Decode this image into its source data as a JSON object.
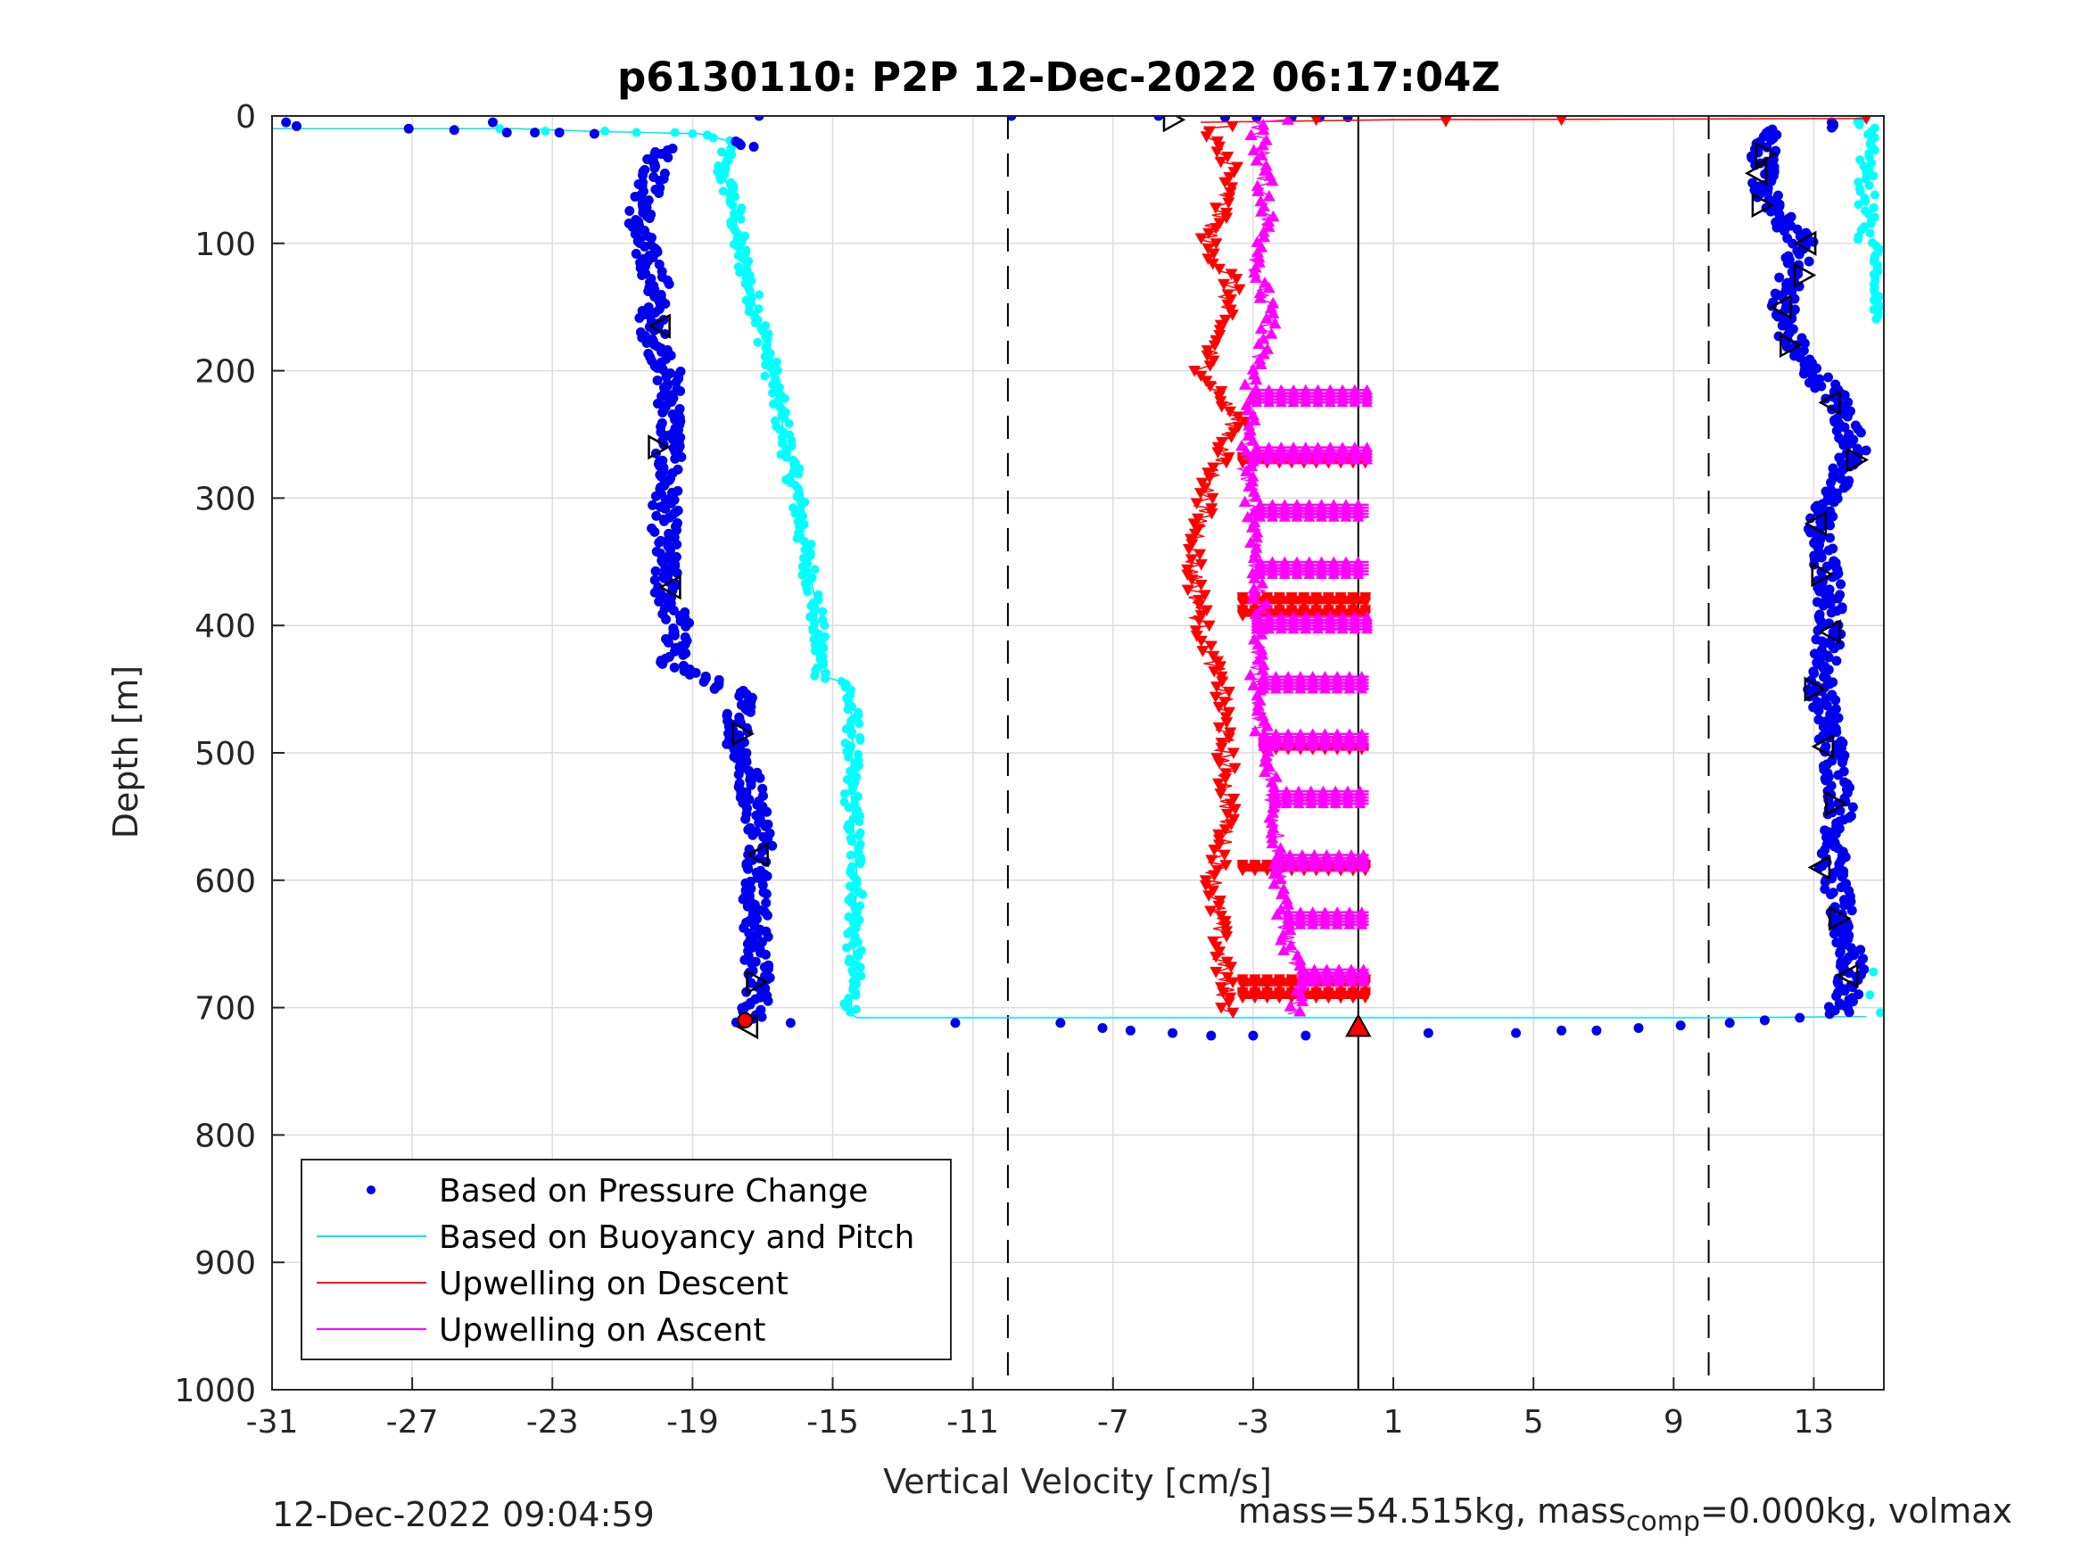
{
  "chart_data": {
    "type": "scatter",
    "title": "p6130110: P2P 12-Dec-2022 06:17:04Z",
    "xlabel": "Vertical Velocity [cm/s]",
    "ylabel": "Depth [m]",
    "xlim": [
      -31,
      15
    ],
    "ylim": [
      0,
      1000
    ],
    "y_reversed": true,
    "grid": true,
    "x_ticks": [
      "-31",
      "-27",
      "-23",
      "-19",
      "-15",
      "-11",
      "-7",
      "-3",
      "1",
      "5",
      "9",
      "13"
    ],
    "y_ticks": [
      "0",
      "100",
      "200",
      "300",
      "400",
      "500",
      "600",
      "700",
      "800",
      "900",
      "1000"
    ],
    "dashed_vlines": [
      -10,
      10
    ],
    "solid_vline": 0,
    "legend_position": "bottom-left",
    "series": [
      {
        "name": "Based on Pressure Change",
        "color": "#0000ee",
        "marker": "dot",
        "descent_profile": [
          [
            -19.8,
            25
          ],
          [
            -20.3,
            60
          ],
          [
            -20.6,
            90
          ],
          [
            -20.0,
            130
          ],
          [
            -20.2,
            165
          ],
          [
            -19.7,
            200
          ],
          [
            -19.6,
            240
          ],
          [
            -19.7,
            270
          ],
          [
            -19.8,
            320
          ],
          [
            -19.8,
            370
          ],
          [
            -19.4,
            400
          ],
          [
            -19.6,
            430
          ],
          [
            -17.6,
            455
          ],
          [
            -17.7,
            490
          ],
          [
            -17.3,
            530
          ],
          [
            -17.0,
            570
          ],
          [
            -17.2,
            610
          ],
          [
            -17.2,
            650
          ],
          [
            -17.1,
            690
          ],
          [
            -17.4,
            712
          ]
        ],
        "descent_surface": [
          [
            -30.6,
            5
          ],
          [
            -30.3,
            8
          ],
          [
            -27.1,
            10
          ],
          [
            -25.8,
            11
          ],
          [
            -24.7,
            5
          ],
          [
            -24.3,
            13
          ],
          [
            -23.5,
            13
          ],
          [
            -22.8,
            13
          ],
          [
            -21.8,
            14
          ],
          [
            -17.1,
            0
          ]
        ],
        "ascent_profile": [
          [
            11.8,
            10
          ],
          [
            11.5,
            40
          ],
          [
            11.7,
            70
          ],
          [
            12.7,
            100
          ],
          [
            12.3,
            130
          ],
          [
            12.1,
            160
          ],
          [
            12.6,
            190
          ],
          [
            13.6,
            220
          ],
          [
            14.2,
            260
          ],
          [
            13.4,
            300
          ],
          [
            13.1,
            330
          ],
          [
            13.4,
            360
          ],
          [
            13.5,
            400
          ],
          [
            13.2,
            450
          ],
          [
            13.5,
            490
          ],
          [
            13.8,
            540
          ],
          [
            13.5,
            590
          ],
          [
            13.8,
            630
          ],
          [
            14.1,
            670
          ],
          [
            13.8,
            700
          ]
        ],
        "bottom_crossing": [
          [
            -16.2,
            712
          ],
          [
            -11.5,
            712
          ],
          [
            -8.5,
            712
          ],
          [
            -7.3,
            716
          ],
          [
            -6.5,
            718
          ],
          [
            -5.3,
            720
          ],
          [
            -4.2,
            722
          ],
          [
            -3.0,
            722
          ],
          [
            -1.5,
            722
          ],
          [
            2.0,
            720
          ],
          [
            4.5,
            720
          ],
          [
            5.8,
            718
          ],
          [
            6.8,
            718
          ],
          [
            8.0,
            716
          ],
          [
            9.2,
            714
          ],
          [
            10.6,
            712
          ],
          [
            11.6,
            710
          ],
          [
            12.6,
            708
          ]
        ],
        "top_points": [
          [
            -9.9,
            0
          ],
          [
            -5.7,
            0
          ],
          [
            -3.8,
            1
          ],
          [
            -2.9,
            1
          ],
          [
            -1.9,
            1
          ],
          [
            -1.1,
            1
          ],
          [
            -0.3,
            1
          ]
        ]
      },
      {
        "name": "Based on Buoyancy and Pitch",
        "color": "#00ffff",
        "marker": "line+dot",
        "line": [
          [
            -31,
            10
          ],
          [
            -24,
            10
          ],
          [
            -22,
            12
          ],
          [
            -18.8,
            14
          ],
          [
            -17.9,
            20
          ],
          [
            -18.2,
            40
          ],
          [
            -17.8,
            70
          ],
          [
            -17.7,
            100
          ],
          [
            -17.3,
            140
          ],
          [
            -16.9,
            180
          ],
          [
            -16.6,
            220
          ],
          [
            -16.3,
            260
          ],
          [
            -16.0,
            300
          ],
          [
            -15.8,
            340
          ],
          [
            -15.5,
            380
          ],
          [
            -15.4,
            420
          ],
          [
            -15.3,
            440
          ],
          [
            -14.6,
            445
          ],
          [
            -14.4,
            480
          ],
          [
            -14.5,
            520
          ],
          [
            -14.4,
            560
          ],
          [
            -14.3,
            600
          ],
          [
            -14.4,
            640
          ],
          [
            -14.4,
            680
          ],
          [
            -14.5,
            705
          ],
          [
            -14.3,
            708
          ],
          [
            -8,
            708
          ],
          [
            0,
            708
          ],
          [
            10,
            708
          ],
          [
            14.5,
            707
          ]
        ],
        "ascent_near_surface": [
          [
            14.6,
            5
          ],
          [
            14.5,
            30
          ],
          [
            14.4,
            60
          ],
          [
            14.6,
            90
          ],
          [
            14.8,
            120
          ],
          [
            14.8,
            150
          ],
          [
            14.9,
            690
          ]
        ]
      },
      {
        "name": "Upwelling on Descent",
        "color": "#ff0000",
        "marker": "down-triangle",
        "profile": [
          [
            -4.5,
            10
          ],
          [
            -3.6,
            40
          ],
          [
            -3.9,
            70
          ],
          [
            -4.3,
            100
          ],
          [
            -3.6,
            130
          ],
          [
            -4.0,
            170
          ],
          [
            -4.4,
            200
          ],
          [
            -3.5,
            240
          ],
          [
            -4.3,
            290
          ],
          [
            -4.7,
            350
          ],
          [
            -4.5,
            400
          ],
          [
            -3.9,
            450
          ],
          [
            -3.8,
            500
          ],
          [
            -3.7,
            550
          ],
          [
            -4.1,
            600
          ],
          [
            -4.0,
            650
          ],
          [
            -3.7,
            700
          ]
        ],
        "bursts": [
          [
            -3.3,
            270
          ],
          [
            -3.3,
            380
          ],
          [
            -3.3,
            390
          ],
          [
            -2.7,
            495
          ],
          [
            -3.3,
            590
          ],
          [
            -3.3,
            680
          ],
          [
            -3.3,
            690
          ]
        ],
        "surface_line": [
          [
            -4.5,
            5
          ],
          [
            1.0,
            3
          ],
          [
            14.5,
            2
          ]
        ]
      },
      {
        "name": "Upwelling on Ascent",
        "color": "#ff00ff",
        "marker": "up-triangle",
        "profile": [
          [
            -2.9,
            5
          ],
          [
            -2.7,
            40
          ],
          [
            -2.6,
            80
          ],
          [
            -2.9,
            120
          ],
          [
            -2.5,
            160
          ],
          [
            -3.0,
            200
          ],
          [
            -3.1,
            240
          ],
          [
            -3.2,
            280
          ],
          [
            -2.9,
            320
          ],
          [
            -2.9,
            360
          ],
          [
            -2.8,
            400
          ],
          [
            -2.9,
            440
          ],
          [
            -2.8,
            480
          ],
          [
            -2.5,
            520
          ],
          [
            -2.3,
            560
          ],
          [
            -2.2,
            600
          ],
          [
            -2.1,
            640
          ],
          [
            -1.6,
            680
          ],
          [
            -1.8,
            705
          ]
        ],
        "bursts": [
          [
            -2.9,
            220
          ],
          [
            -2.9,
            265
          ],
          [
            -2.8,
            310
          ],
          [
            -2.8,
            355
          ],
          [
            -2.9,
            398
          ],
          [
            -2.7,
            445
          ],
          [
            -2.7,
            490
          ],
          [
            -2.4,
            535
          ],
          [
            -2.3,
            585
          ],
          [
            -2.0,
            630
          ],
          [
            -1.6,
            675
          ]
        ]
      }
    ],
    "black_triangle_markers": [
      [
        -5.3,
        3
      ],
      [
        -19.9,
        165
      ],
      [
        -20.0,
        260
      ],
      [
        -19.6,
        370
      ],
      [
        -17.6,
        485
      ],
      [
        -17.1,
        580
      ],
      [
        -17.2,
        680
      ],
      [
        -17.4,
        715
      ],
      [
        11.6,
        30
      ],
      [
        11.4,
        45
      ],
      [
        11.5,
        70
      ],
      [
        12.8,
        100
      ],
      [
        12.7,
        125
      ],
      [
        12.1,
        150
      ],
      [
        12.3,
        180
      ],
      [
        13.5,
        225
      ],
      [
        14.2,
        270
      ],
      [
        13.1,
        320
      ],
      [
        13.2,
        360
      ],
      [
        13.5,
        405
      ],
      [
        13.0,
        450
      ],
      [
        13.3,
        495
      ],
      [
        13.6,
        540
      ],
      [
        13.2,
        590
      ],
      [
        13.7,
        630
      ],
      [
        14.0,
        675
      ]
    ],
    "red_markers": [
      [
        -17.5,
        710
      ],
      [
        0,
        715
      ]
    ]
  },
  "legend": {
    "entries": [
      {
        "label": "Based on Pressure Change",
        "color": "#0000ee",
        "style": "dot"
      },
      {
        "label": "Based on Buoyancy and Pitch",
        "color": "#00e5e5",
        "style": "line"
      },
      {
        "label": "Upwelling on Descent",
        "color": "#ff0000",
        "style": "line"
      },
      {
        "label": "Upwelling on Ascent",
        "color": "#ff00ff",
        "style": "line"
      }
    ]
  },
  "footer": {
    "timestamp": "12-Dec-2022 09:04:59",
    "mass_text": "mass=54.515kg, mass",
    "mass_sub": "comp",
    "mass_tail": "=0.000kg, volmax"
  }
}
